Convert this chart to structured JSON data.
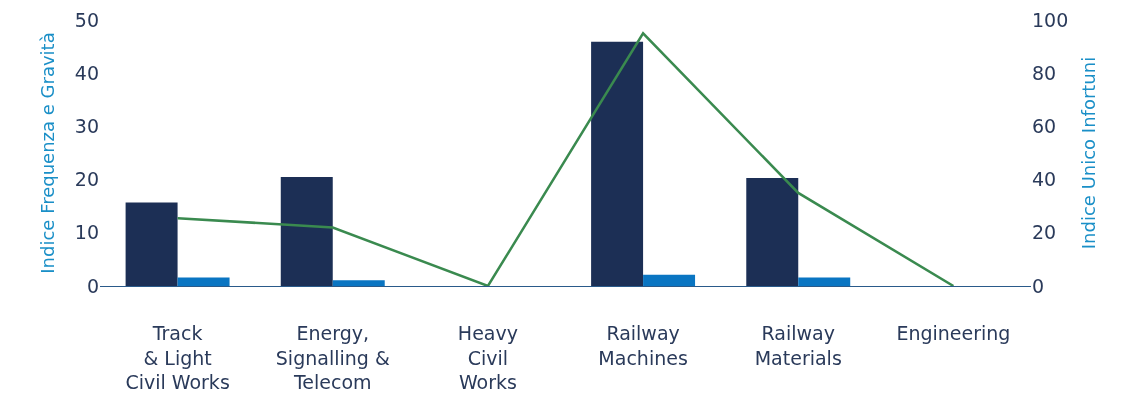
{
  "chart_data": {
    "type": "bar",
    "ylabel": "Indice Frequenza e Gravità",
    "y2label": "Indice Unico Infortuni",
    "categories": [
      "Track\n& Light\nCivil Works",
      "Energy,\nSignalling &\nTelecom",
      "Heavy\nCivil\nWorks",
      "Railway\nMachines",
      "Railway\nMaterials",
      "Engineering"
    ],
    "series": [
      {
        "color": "#1c2f55",
        "values": [
          15.7,
          20.5,
          0,
          45.9,
          20.3,
          0
        ]
      },
      {
        "color": "#0a75c2",
        "values": [
          1.6,
          1.1,
          0,
          2.1,
          1.6,
          0
        ]
      },
      {
        "type": "line",
        "axis": "y2",
        "color": "#3a8a4f",
        "values": [
          25.5,
          22,
          0,
          95,
          35,
          0
        ]
      }
    ],
    "ylim": [
      0,
      50
    ],
    "yticks": [
      0,
      10,
      20,
      30,
      40,
      50
    ],
    "y2lim": [
      0,
      100
    ],
    "y2ticks": [
      0,
      20,
      40,
      60,
      80,
      100
    ],
    "grid": false,
    "marker": "none"
  }
}
